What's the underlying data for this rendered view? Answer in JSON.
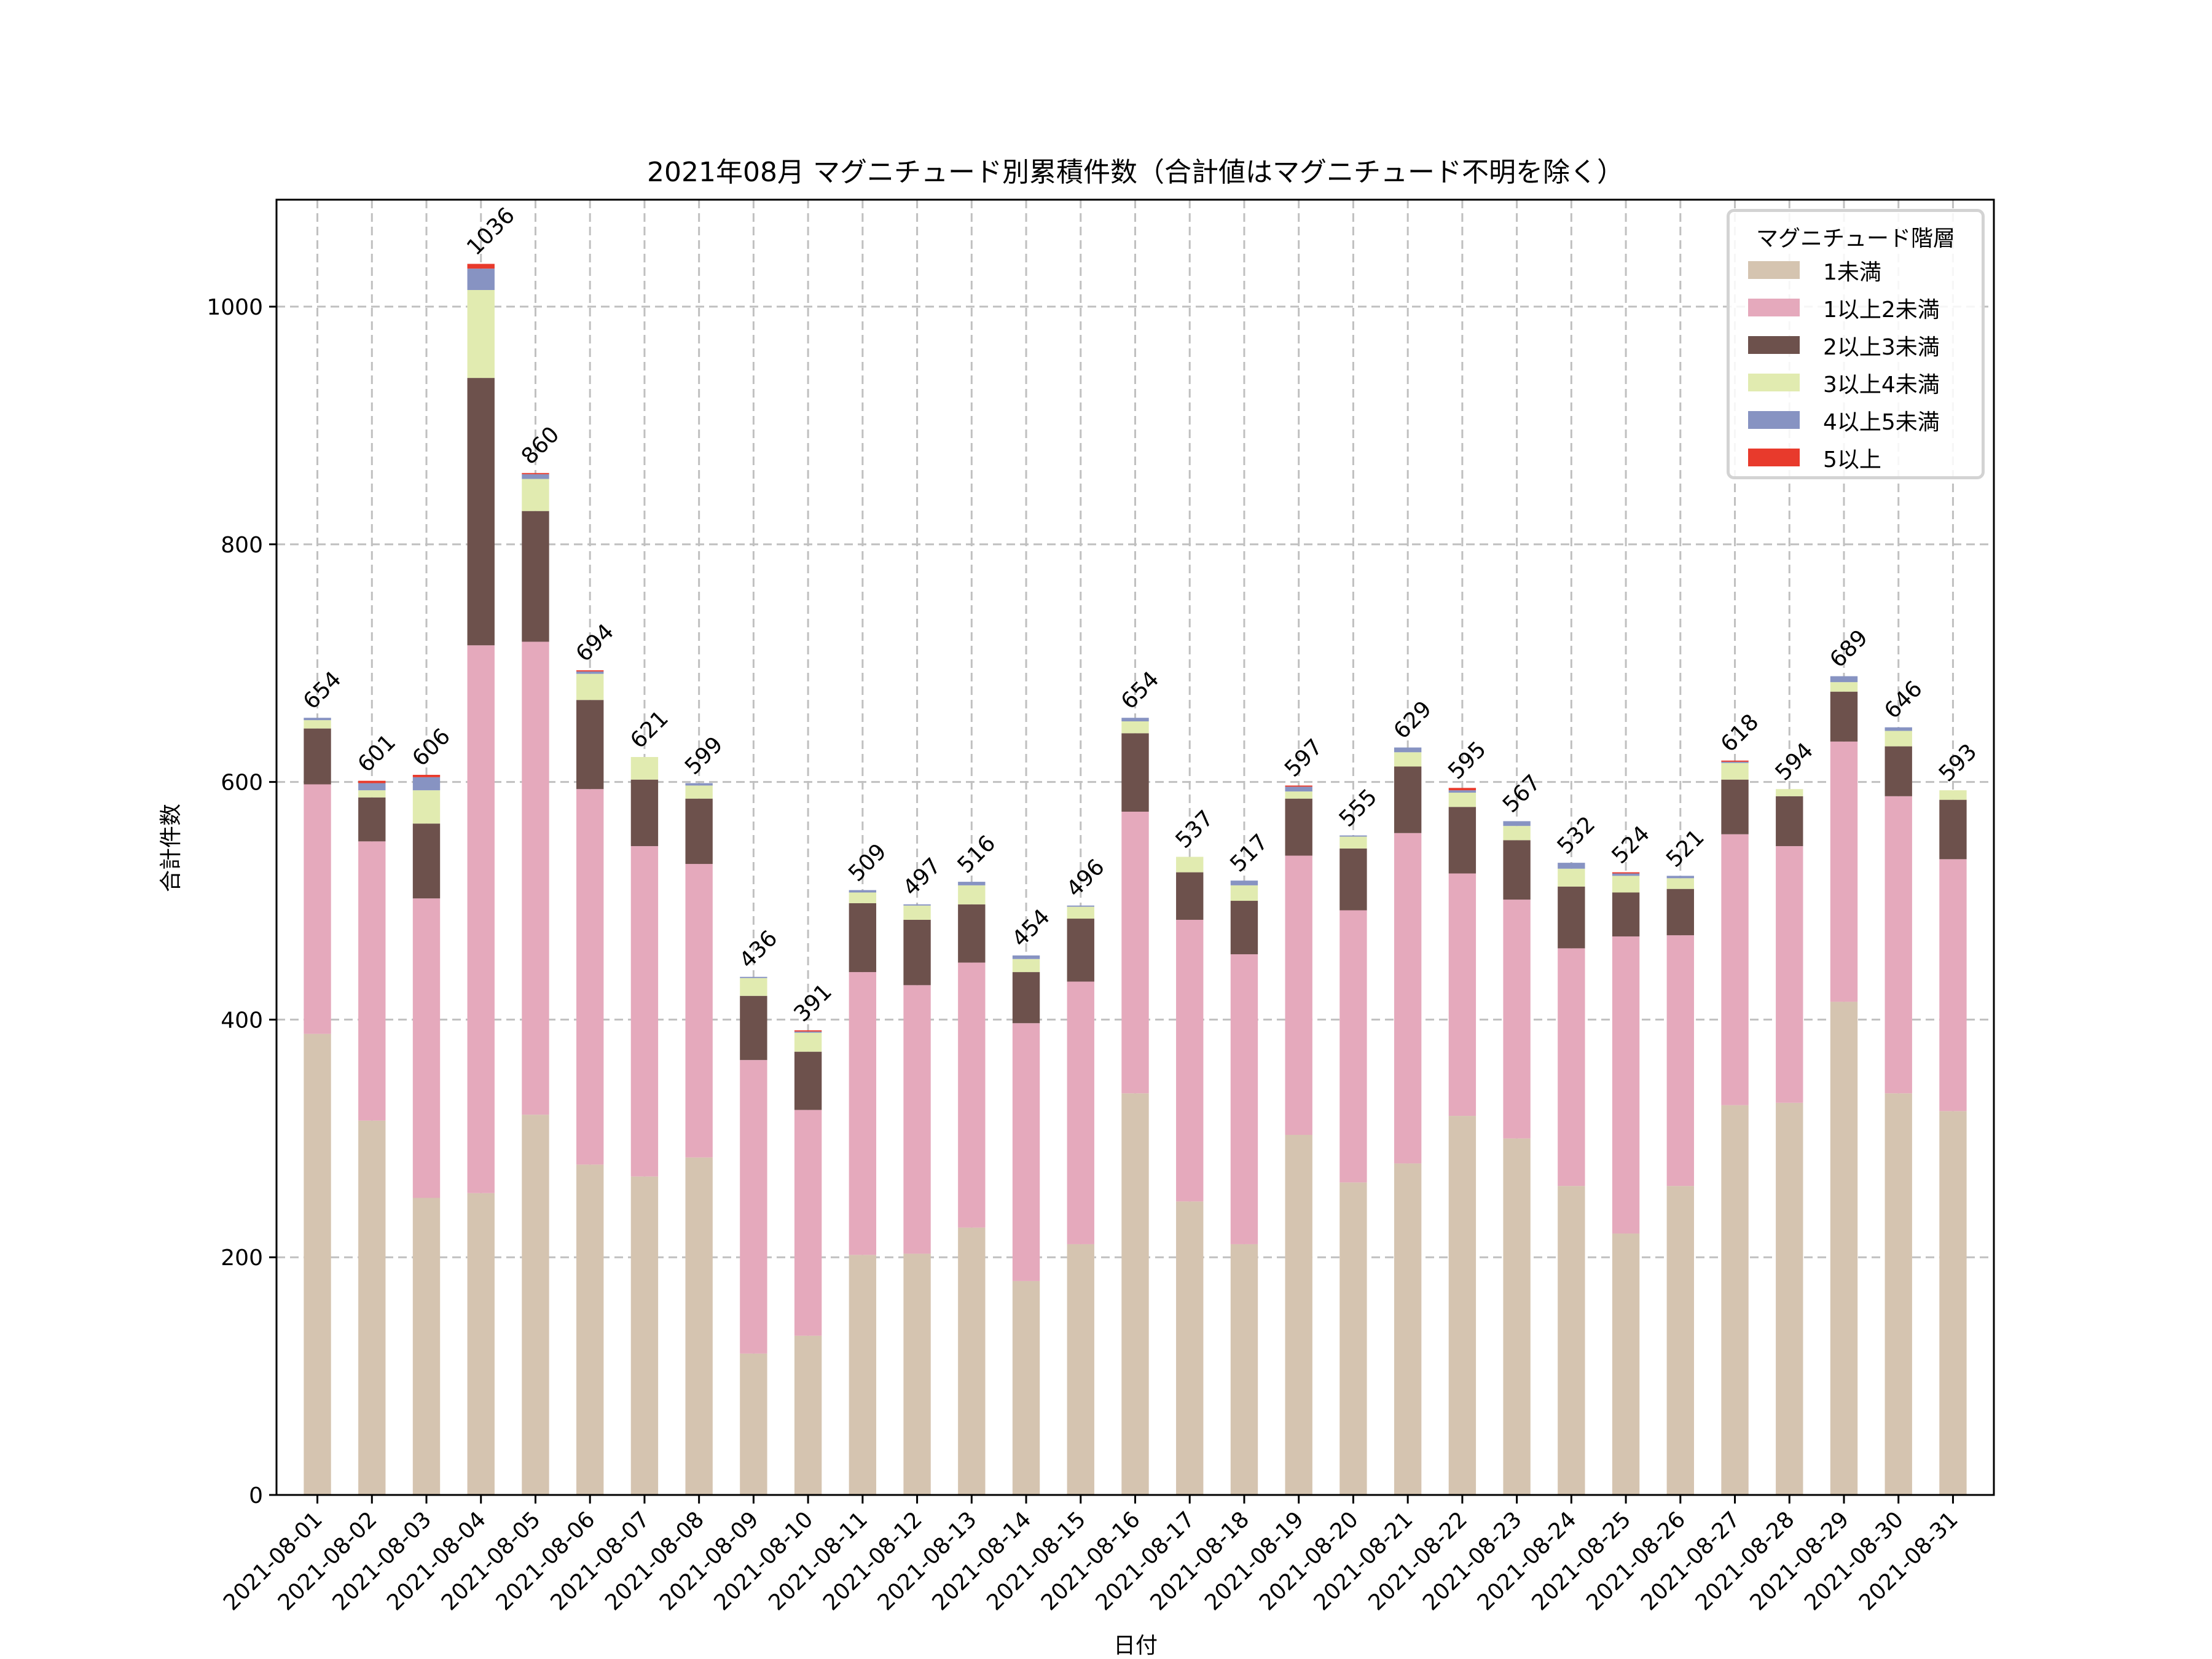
{
  "chart_data": {
    "type": "bar",
    "stacked": true,
    "title": "2021年08月 マグニチュード別累積件数（合計値はマグニチュード不明を除く）",
    "xlabel": "日付",
    "ylabel": "合計件数",
    "ylim": [
      0,
      1090
    ],
    "yticks": [
      0,
      200,
      400,
      600,
      800,
      1000
    ],
    "grid": true,
    "legend_title": "マグニチュード階層",
    "legend_position": "top-right",
    "categories": [
      "2021-08-01",
      "2021-08-02",
      "2021-08-03",
      "2021-08-04",
      "2021-08-05",
      "2021-08-06",
      "2021-08-07",
      "2021-08-08",
      "2021-08-09",
      "2021-08-10",
      "2021-08-11",
      "2021-08-12",
      "2021-08-13",
      "2021-08-14",
      "2021-08-15",
      "2021-08-16",
      "2021-08-17",
      "2021-08-18",
      "2021-08-19",
      "2021-08-20",
      "2021-08-21",
      "2021-08-22",
      "2021-08-23",
      "2021-08-24",
      "2021-08-25",
      "2021-08-26",
      "2021-08-27",
      "2021-08-28",
      "2021-08-29",
      "2021-08-30",
      "2021-08-31"
    ],
    "totals": [
      654,
      601,
      606,
      1036,
      860,
      694,
      621,
      599,
      436,
      391,
      509,
      497,
      516,
      454,
      496,
      654,
      537,
      517,
      597,
      555,
      629,
      595,
      567,
      532,
      524,
      521,
      618,
      594,
      689,
      646,
      593
    ],
    "series": [
      {
        "name": "1未満",
        "color": "#d5c4b0",
        "values": [
          388,
          315,
          250,
          254,
          320,
          278,
          268,
          284,
          119,
          134,
          202,
          203,
          225,
          180,
          211,
          338,
          247,
          211,
          303,
          263,
          279,
          319,
          300,
          260,
          220,
          260,
          328,
          330,
          415,
          338,
          323
        ]
      },
      {
        "name": "1以上2未満",
        "color": "#e5a9bc",
        "values": [
          210,
          235,
          252,
          461,
          398,
          316,
          278,
          247,
          247,
          190,
          238,
          226,
          223,
          217,
          221,
          237,
          237,
          244,
          235,
          229,
          278,
          204,
          201,
          200,
          250,
          211,
          228,
          216,
          219,
          250,
          212
        ]
      },
      {
        "name": "2以上3未満",
        "color": "#6d514c",
        "values": [
          47,
          37,
          63,
          225,
          110,
          75,
          56,
          55,
          54,
          49,
          58,
          55,
          49,
          43,
          53,
          66,
          40,
          45,
          48,
          52,
          56,
          56,
          50,
          52,
          37,
          39,
          46,
          42,
          42,
          42,
          50
        ]
      },
      {
        "name": "3以上4未満",
        "color": "#e1ebb0",
        "values": [
          7,
          6,
          28,
          74,
          27,
          22,
          19,
          11,
          15,
          16,
          9,
          12,
          16,
          11,
          10,
          10,
          13,
          13,
          6,
          10,
          12,
          12,
          12,
          15,
          14,
          9,
          14,
          6,
          8,
          13,
          8
        ]
      },
      {
        "name": "4以上5未満",
        "color": "#8793c2",
        "values": [
          2,
          6,
          11,
          18,
          4,
          2,
          0,
          2,
          1,
          1,
          2,
          1,
          3,
          3,
          1,
          3,
          0,
          4,
          4,
          1,
          4,
          2,
          4,
          5,
          2,
          2,
          1,
          0,
          5,
          3,
          0
        ]
      },
      {
        "name": "5以上",
        "color": "#e83a2c",
        "values": [
          0,
          2,
          2,
          4,
          1,
          1,
          0,
          0,
          0,
          1,
          0,
          0,
          0,
          0,
          0,
          0,
          0,
          0,
          1,
          0,
          0,
          2,
          0,
          0,
          1,
          0,
          1,
          0,
          0,
          0,
          0
        ]
      }
    ]
  }
}
